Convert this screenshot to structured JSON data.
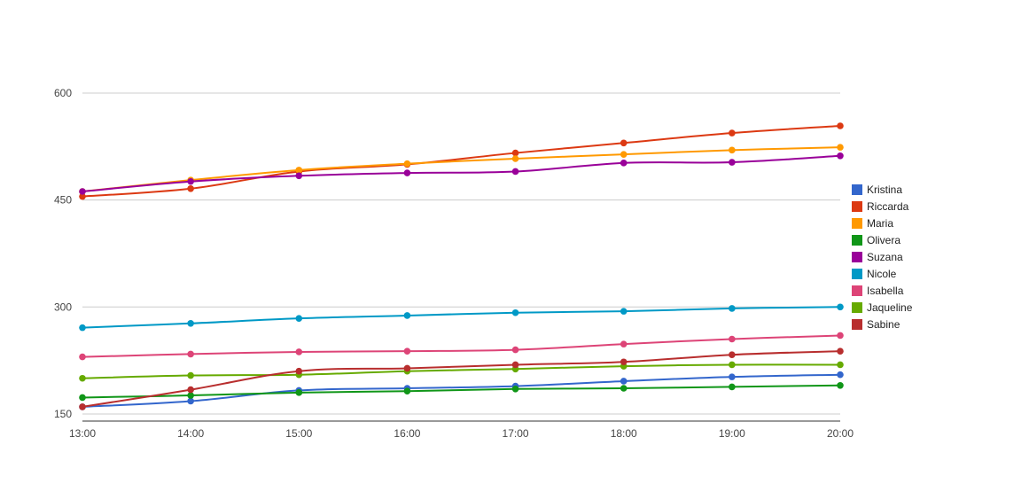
{
  "chart_data": {
    "type": "line",
    "title": "",
    "xlabel": "",
    "ylabel": "",
    "x": [
      "13:00",
      "14:00",
      "15:00",
      "16:00",
      "17:00",
      "18:00",
      "19:00",
      "20:00"
    ],
    "yticks": [
      150,
      300,
      450,
      600
    ],
    "ylim": [
      140,
      600
    ],
    "grid": true,
    "legend": "right",
    "series": [
      {
        "name": "Kristina",
        "color": "#3366cc",
        "values": [
          160,
          168,
          183,
          186,
          189,
          196,
          202,
          205
        ]
      },
      {
        "name": "Riccarda",
        "color": "#dc3912",
        "values": [
          455,
          466,
          490,
          500,
          516,
          530,
          544,
          554
        ]
      },
      {
        "name": "Maria",
        "color": "#ff9900",
        "values": [
          462,
          478,
          492,
          501,
          508,
          514,
          520,
          524
        ]
      },
      {
        "name": "Olivera",
        "color": "#109618",
        "values": [
          173,
          176,
          180,
          182,
          185,
          186,
          188,
          190
        ]
      },
      {
        "name": "Suzana",
        "color": "#990099",
        "values": [
          462,
          476,
          484,
          488,
          490,
          502,
          503,
          512
        ]
      },
      {
        "name": "Nicole",
        "color": "#0099c6",
        "values": [
          271,
          277,
          284,
          288,
          292,
          294,
          298,
          300
        ]
      },
      {
        "name": "Isabella",
        "color": "#dd4477",
        "values": [
          230,
          234,
          237,
          238,
          240,
          248,
          255,
          260
        ]
      },
      {
        "name": "Jaqueline",
        "color": "#66aa00",
        "values": [
          200,
          204,
          205,
          210,
          213,
          217,
          219,
          219
        ]
      },
      {
        "name": "Sabine",
        "color": "#b82e2e",
        "values": [
          160,
          184,
          210,
          214,
          219,
          223,
          233,
          238
        ]
      }
    ]
  }
}
